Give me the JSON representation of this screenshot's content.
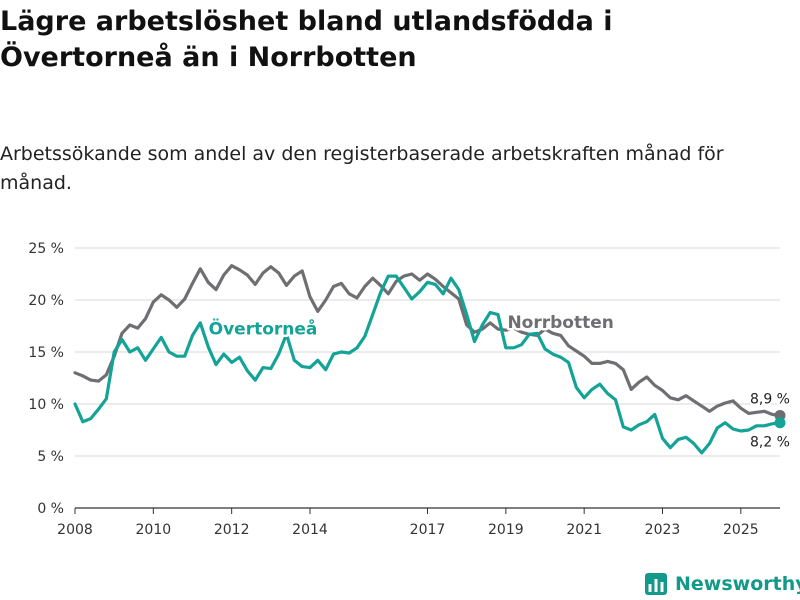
{
  "header": {
    "title": "Lägre arbetslöshet bland utlandsfödda i Övertorneå än i Norrbotten",
    "subtitle": "Arbetssökande som andel av den registerbaserade arbetskraften månad för månad."
  },
  "brand": {
    "name": "Newsworthy",
    "icon": "chart-logo-icon",
    "color": "#13998a"
  },
  "chart_data": {
    "type": "line",
    "title": "Lägre arbetslöshet bland utlandsfödda i Övertorneå än i Norrbotten",
    "subtitle": "Arbetssökande som andel av den registerbaserade arbetskraften månad för månad.",
    "xlabel": "",
    "ylabel": "",
    "xlim": [
      2008,
      2026
    ],
    "ylim": [
      0,
      25
    ],
    "y_ticks": [
      0,
      5,
      10,
      15,
      20,
      25
    ],
    "y_tick_labels": [
      "0 %",
      "5 %",
      "10 %",
      "15 %",
      "20 %",
      "25 %"
    ],
    "x_ticks": [
      2008,
      2010,
      2012,
      2014,
      2017,
      2019,
      2021,
      2023,
      2025
    ],
    "x_tick_labels": [
      "2008",
      "2010",
      "2012",
      "2014",
      "2017",
      "2019",
      "2021",
      "2023",
      "2025"
    ],
    "grid": true,
    "series": [
      {
        "name": "Norrbotten",
        "color": "#6e6e73",
        "end_label": "8,9 %",
        "x": [
          2008.0,
          2008.2,
          2008.4,
          2008.6,
          2008.8,
          2009.0,
          2009.2,
          2009.4,
          2009.6,
          2009.8,
          2010.0,
          2010.2,
          2010.4,
          2010.6,
          2010.8,
          2011.0,
          2011.2,
          2011.4,
          2011.6,
          2011.8,
          2012.0,
          2012.2,
          2012.4,
          2012.6,
          2012.8,
          2013.0,
          2013.2,
          2013.4,
          2013.6,
          2013.8,
          2014.0,
          2014.2,
          2014.4,
          2014.6,
          2014.8,
          2015.0,
          2015.2,
          2015.4,
          2015.6,
          2015.8,
          2016.0,
          2016.2,
          2016.4,
          2016.6,
          2016.8,
          2017.0,
          2017.2,
          2017.4,
          2017.6,
          2017.8,
          2018.0,
          2018.2,
          2018.4,
          2018.6,
          2018.8,
          2019.0,
          2019.2,
          2019.4,
          2019.6,
          2019.8,
          2020.0,
          2020.2,
          2020.4,
          2020.6,
          2020.8,
          2021.0,
          2021.2,
          2021.4,
          2021.6,
          2021.8,
          2022.0,
          2022.2,
          2022.4,
          2022.6,
          2022.8,
          2023.0,
          2023.2,
          2023.4,
          2023.6,
          2023.8,
          2024.0,
          2024.2,
          2024.4,
          2024.6,
          2024.8,
          2025.0,
          2025.2,
          2025.4,
          2025.6,
          2025.8,
          2026.0
        ],
        "values": [
          13.0,
          12.7,
          12.3,
          12.2,
          12.8,
          14.6,
          16.8,
          17.6,
          17.3,
          18.2,
          19.8,
          20.5,
          20.0,
          19.3,
          20.1,
          21.6,
          23.0,
          21.7,
          21.0,
          22.4,
          23.3,
          22.9,
          22.4,
          21.5,
          22.6,
          23.2,
          22.6,
          21.4,
          22.3,
          22.8,
          20.3,
          18.9,
          20.0,
          21.3,
          21.6,
          20.6,
          20.2,
          21.3,
          22.1,
          21.4,
          20.6,
          21.8,
          22.3,
          22.5,
          21.9,
          22.5,
          22.0,
          21.3,
          20.7,
          20.1,
          17.6,
          16.9,
          17.2,
          17.8,
          17.2,
          17.1,
          17.3,
          16.9,
          16.7,
          16.6,
          17.2,
          16.8,
          16.6,
          15.6,
          15.1,
          14.6,
          13.9,
          13.9,
          14.1,
          13.9,
          13.3,
          11.4,
          12.1,
          12.6,
          11.8,
          11.3,
          10.6,
          10.4,
          10.8,
          10.3,
          9.8,
          9.3,
          9.8,
          10.1,
          10.3,
          9.6,
          9.1,
          9.2,
          9.3,
          9.0,
          8.9
        ]
      },
      {
        "name": "Övertorneå",
        "color": "#13a397",
        "end_label": "8,2 %",
        "x": [
          2008.0,
          2008.2,
          2008.4,
          2008.6,
          2008.8,
          2009.0,
          2009.2,
          2009.4,
          2009.6,
          2009.8,
          2010.0,
          2010.2,
          2010.4,
          2010.6,
          2010.8,
          2011.0,
          2011.2,
          2011.4,
          2011.6,
          2011.8,
          2012.0,
          2012.2,
          2012.4,
          2012.6,
          2012.8,
          2013.0,
          2013.2,
          2013.4,
          2013.6,
          2013.8,
          2014.0,
          2014.2,
          2014.4,
          2014.6,
          2014.8,
          2015.0,
          2015.2,
          2015.4,
          2015.6,
          2015.8,
          2016.0,
          2016.2,
          2016.4,
          2016.6,
          2016.8,
          2017.0,
          2017.2,
          2017.4,
          2017.6,
          2017.8,
          2018.0,
          2018.2,
          2018.4,
          2018.6,
          2018.8,
          2019.0,
          2019.2,
          2019.4,
          2019.6,
          2019.8,
          2020.0,
          2020.2,
          2020.4,
          2020.6,
          2020.8,
          2021.0,
          2021.2,
          2021.4,
          2021.6,
          2021.8,
          2022.0,
          2022.2,
          2022.4,
          2022.6,
          2022.8,
          2023.0,
          2023.2,
          2023.4,
          2023.6,
          2023.8,
          2024.0,
          2024.2,
          2024.4,
          2024.6,
          2024.8,
          2025.0,
          2025.2,
          2025.4,
          2025.6,
          2025.8,
          2026.0
        ],
        "values": [
          10.0,
          8.3,
          8.6,
          9.5,
          10.5,
          15.0,
          16.2,
          15.0,
          15.4,
          14.2,
          15.3,
          16.4,
          15.0,
          14.6,
          14.6,
          16.6,
          17.8,
          15.5,
          13.8,
          14.8,
          14.0,
          14.5,
          13.2,
          12.3,
          13.5,
          13.4,
          14.8,
          16.7,
          14.2,
          13.6,
          13.5,
          14.2,
          13.3,
          14.8,
          15.0,
          14.9,
          15.4,
          16.5,
          18.6,
          20.7,
          22.3,
          22.3,
          21.2,
          20.1,
          20.8,
          21.7,
          21.5,
          20.6,
          22.1,
          21.0,
          18.6,
          16.0,
          17.6,
          18.8,
          18.6,
          15.4,
          15.4,
          15.7,
          16.7,
          16.8,
          15.3,
          14.8,
          14.5,
          14.0,
          11.6,
          10.6,
          11.4,
          11.9,
          11.0,
          10.4,
          7.8,
          7.5,
          8.0,
          8.3,
          9.0,
          6.7,
          5.8,
          6.6,
          6.8,
          6.2,
          5.3,
          6.2,
          7.7,
          8.2,
          7.6,
          7.4,
          7.5,
          7.9,
          7.9,
          8.1,
          8.2
        ]
      }
    ]
  }
}
